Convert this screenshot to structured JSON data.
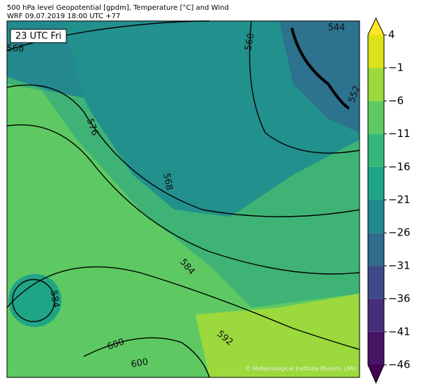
{
  "header": {
    "title": "500 hPa level Geopotential [gpdm], Temperature [°C] and Wind",
    "subtitle": "WRF 09.07.2019 18:00 UTC +77"
  },
  "map": {
    "time_label": "23 UTC Fri",
    "contour_labels": [
      "568",
      "576",
      "560",
      "544",
      "552",
      "568",
      "584",
      "584",
      "592",
      "600",
      "600"
    ],
    "credit": "© Meteorological Institute Munich, LMU"
  },
  "colorbar": {
    "ticks": [
      {
        "value": -46,
        "label": "−46"
      },
      {
        "value": -41,
        "label": "−41"
      },
      {
        "value": -36,
        "label": "−36"
      },
      {
        "value": -31,
        "label": "−31"
      },
      {
        "value": -26,
        "label": "−26"
      },
      {
        "value": -21,
        "label": "−21"
      },
      {
        "value": -16,
        "label": "−16"
      },
      {
        "value": -11,
        "label": "−11"
      },
      {
        "value": -6,
        "label": "−6"
      },
      {
        "value": -1,
        "label": "−1"
      },
      4
    ],
    "colors": [
      "#440154",
      "#471365",
      "#472f7d",
      "#3e4a89",
      "#2f6c8e",
      "#23898e",
      "#20a486",
      "#35b779",
      "#5ec962",
      "#9bd93c",
      "#dde318",
      "#fde725"
    ]
  }
}
